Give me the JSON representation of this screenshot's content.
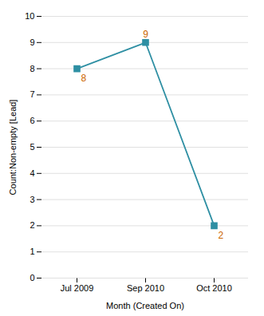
{
  "chart_data": {
    "type": "line",
    "categories": [
      "Jul 2009",
      "Sep 2010",
      "Oct 2010"
    ],
    "values": [
      8,
      9,
      2
    ],
    "color": "#2E8FA3",
    "marker": "square",
    "xlabel": "Month (Created On)",
    "ylabel": "Count:Non-empty [Lead]",
    "ylim": [
      0,
      10
    ],
    "yticks": [
      0,
      1,
      2,
      3,
      4,
      5,
      6,
      7,
      8,
      9,
      10
    ],
    "grid": true,
    "data_labels": true
  }
}
